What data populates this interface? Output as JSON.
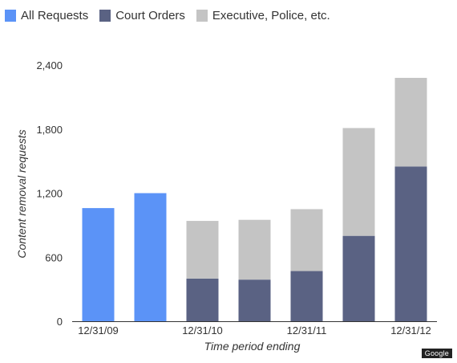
{
  "chart_data": {
    "type": "bar",
    "stacked": true,
    "categories": [
      "12/31/09",
      "",
      "12/31/10",
      "",
      "12/31/11",
      "",
      "12/31/12"
    ],
    "series": [
      {
        "name": "All Requests",
        "color": "#5b93f7",
        "values": [
          1060,
          1200,
          null,
          null,
          null,
          null,
          null
        ]
      },
      {
        "name": "Court Orders",
        "color": "#5a6283",
        "values": [
          null,
          null,
          400,
          390,
          470,
          800,
          1450
        ]
      },
      {
        "name": "Executive, Police, etc.",
        "color": "#c4c4c4",
        "values": [
          null,
          null,
          540,
          560,
          580,
          1010,
          830
        ]
      }
    ],
    "xlabel": "Time period ending",
    "ylabel": "Content removal requests",
    "ylim": [
      0,
      2400
    ],
    "yticks": [
      "0",
      "600",
      "1,200",
      "1,800",
      "2,400"
    ],
    "yticks_values": [
      0,
      600,
      1200,
      1800,
      2400
    ],
    "grid": false,
    "legend_position": "top-left"
  },
  "badge": "Google"
}
